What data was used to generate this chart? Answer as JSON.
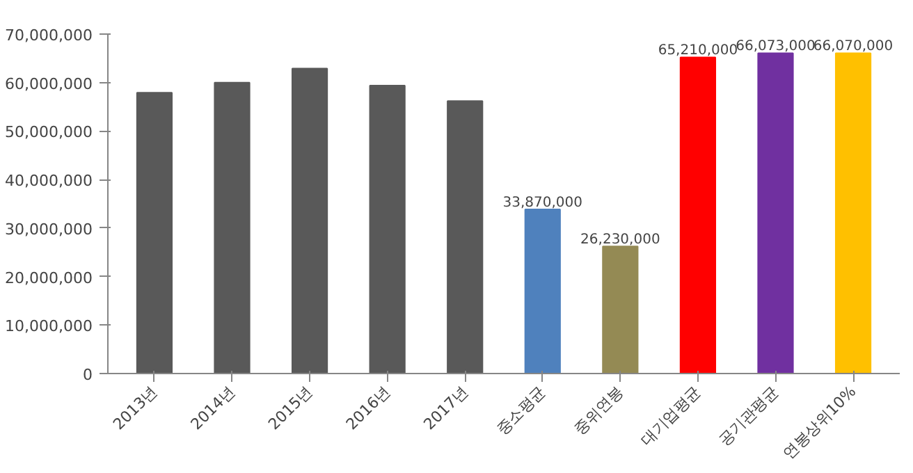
{
  "chart_data": {
    "type": "bar",
    "categories": [
      "2013년",
      "2014년",
      "2015년",
      "2016년",
      "2017년",
      "중소평균",
      "중위연봉",
      "대기업평균",
      "공기관평균",
      "연봉상위10%"
    ],
    "values": [
      57900000,
      60000000,
      62900000,
      59400000,
      56200000,
      33870000,
      26230000,
      65210000,
      66073000,
      66070000
    ],
    "colors": [
      "#595959",
      "#595959",
      "#595959",
      "#595959",
      "#595959",
      "#4f81bd",
      "#948a54",
      "#ff0000",
      "#7030a0",
      "#ffc000"
    ],
    "value_labels": [
      null,
      null,
      null,
      null,
      null,
      "33,870,000",
      "26,230,000",
      "65,210,000",
      "66,073,000",
      "66,070,000"
    ],
    "ylim": [
      0,
      70000000
    ],
    "yticks": [
      {
        "value": 0,
        "label": "0"
      },
      {
        "value": 10000000,
        "label": "10,000,000"
      },
      {
        "value": 20000000,
        "label": "20,000,000"
      },
      {
        "value": 30000000,
        "label": "30,000,000"
      },
      {
        "value": 40000000,
        "label": "40,000,000"
      },
      {
        "value": 50000000,
        "label": "50,000,000"
      },
      {
        "value": 60000000,
        "label": "60,000,000"
      },
      {
        "value": 70000000,
        "label": "70,000,000"
      }
    ],
    "grid": false
  }
}
